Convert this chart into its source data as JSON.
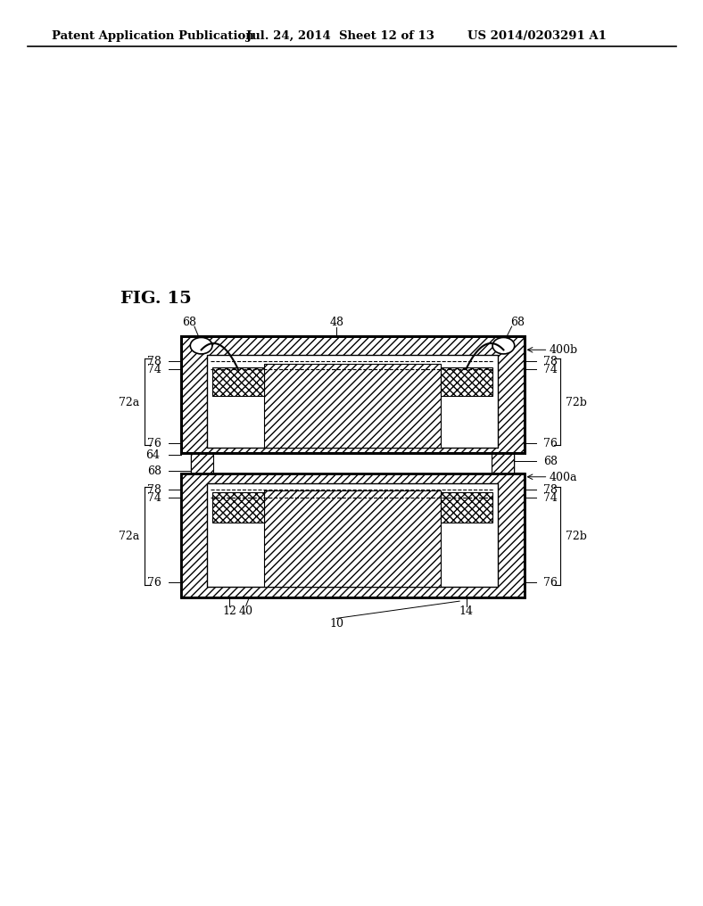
{
  "header_left": "Patent Application Publication",
  "header_mid": "Jul. 24, 2014  Sheet 12 of 13",
  "header_right": "US 2014/0203291 A1",
  "fig_label": "FIG. 15",
  "bg_color": "#ffffff"
}
